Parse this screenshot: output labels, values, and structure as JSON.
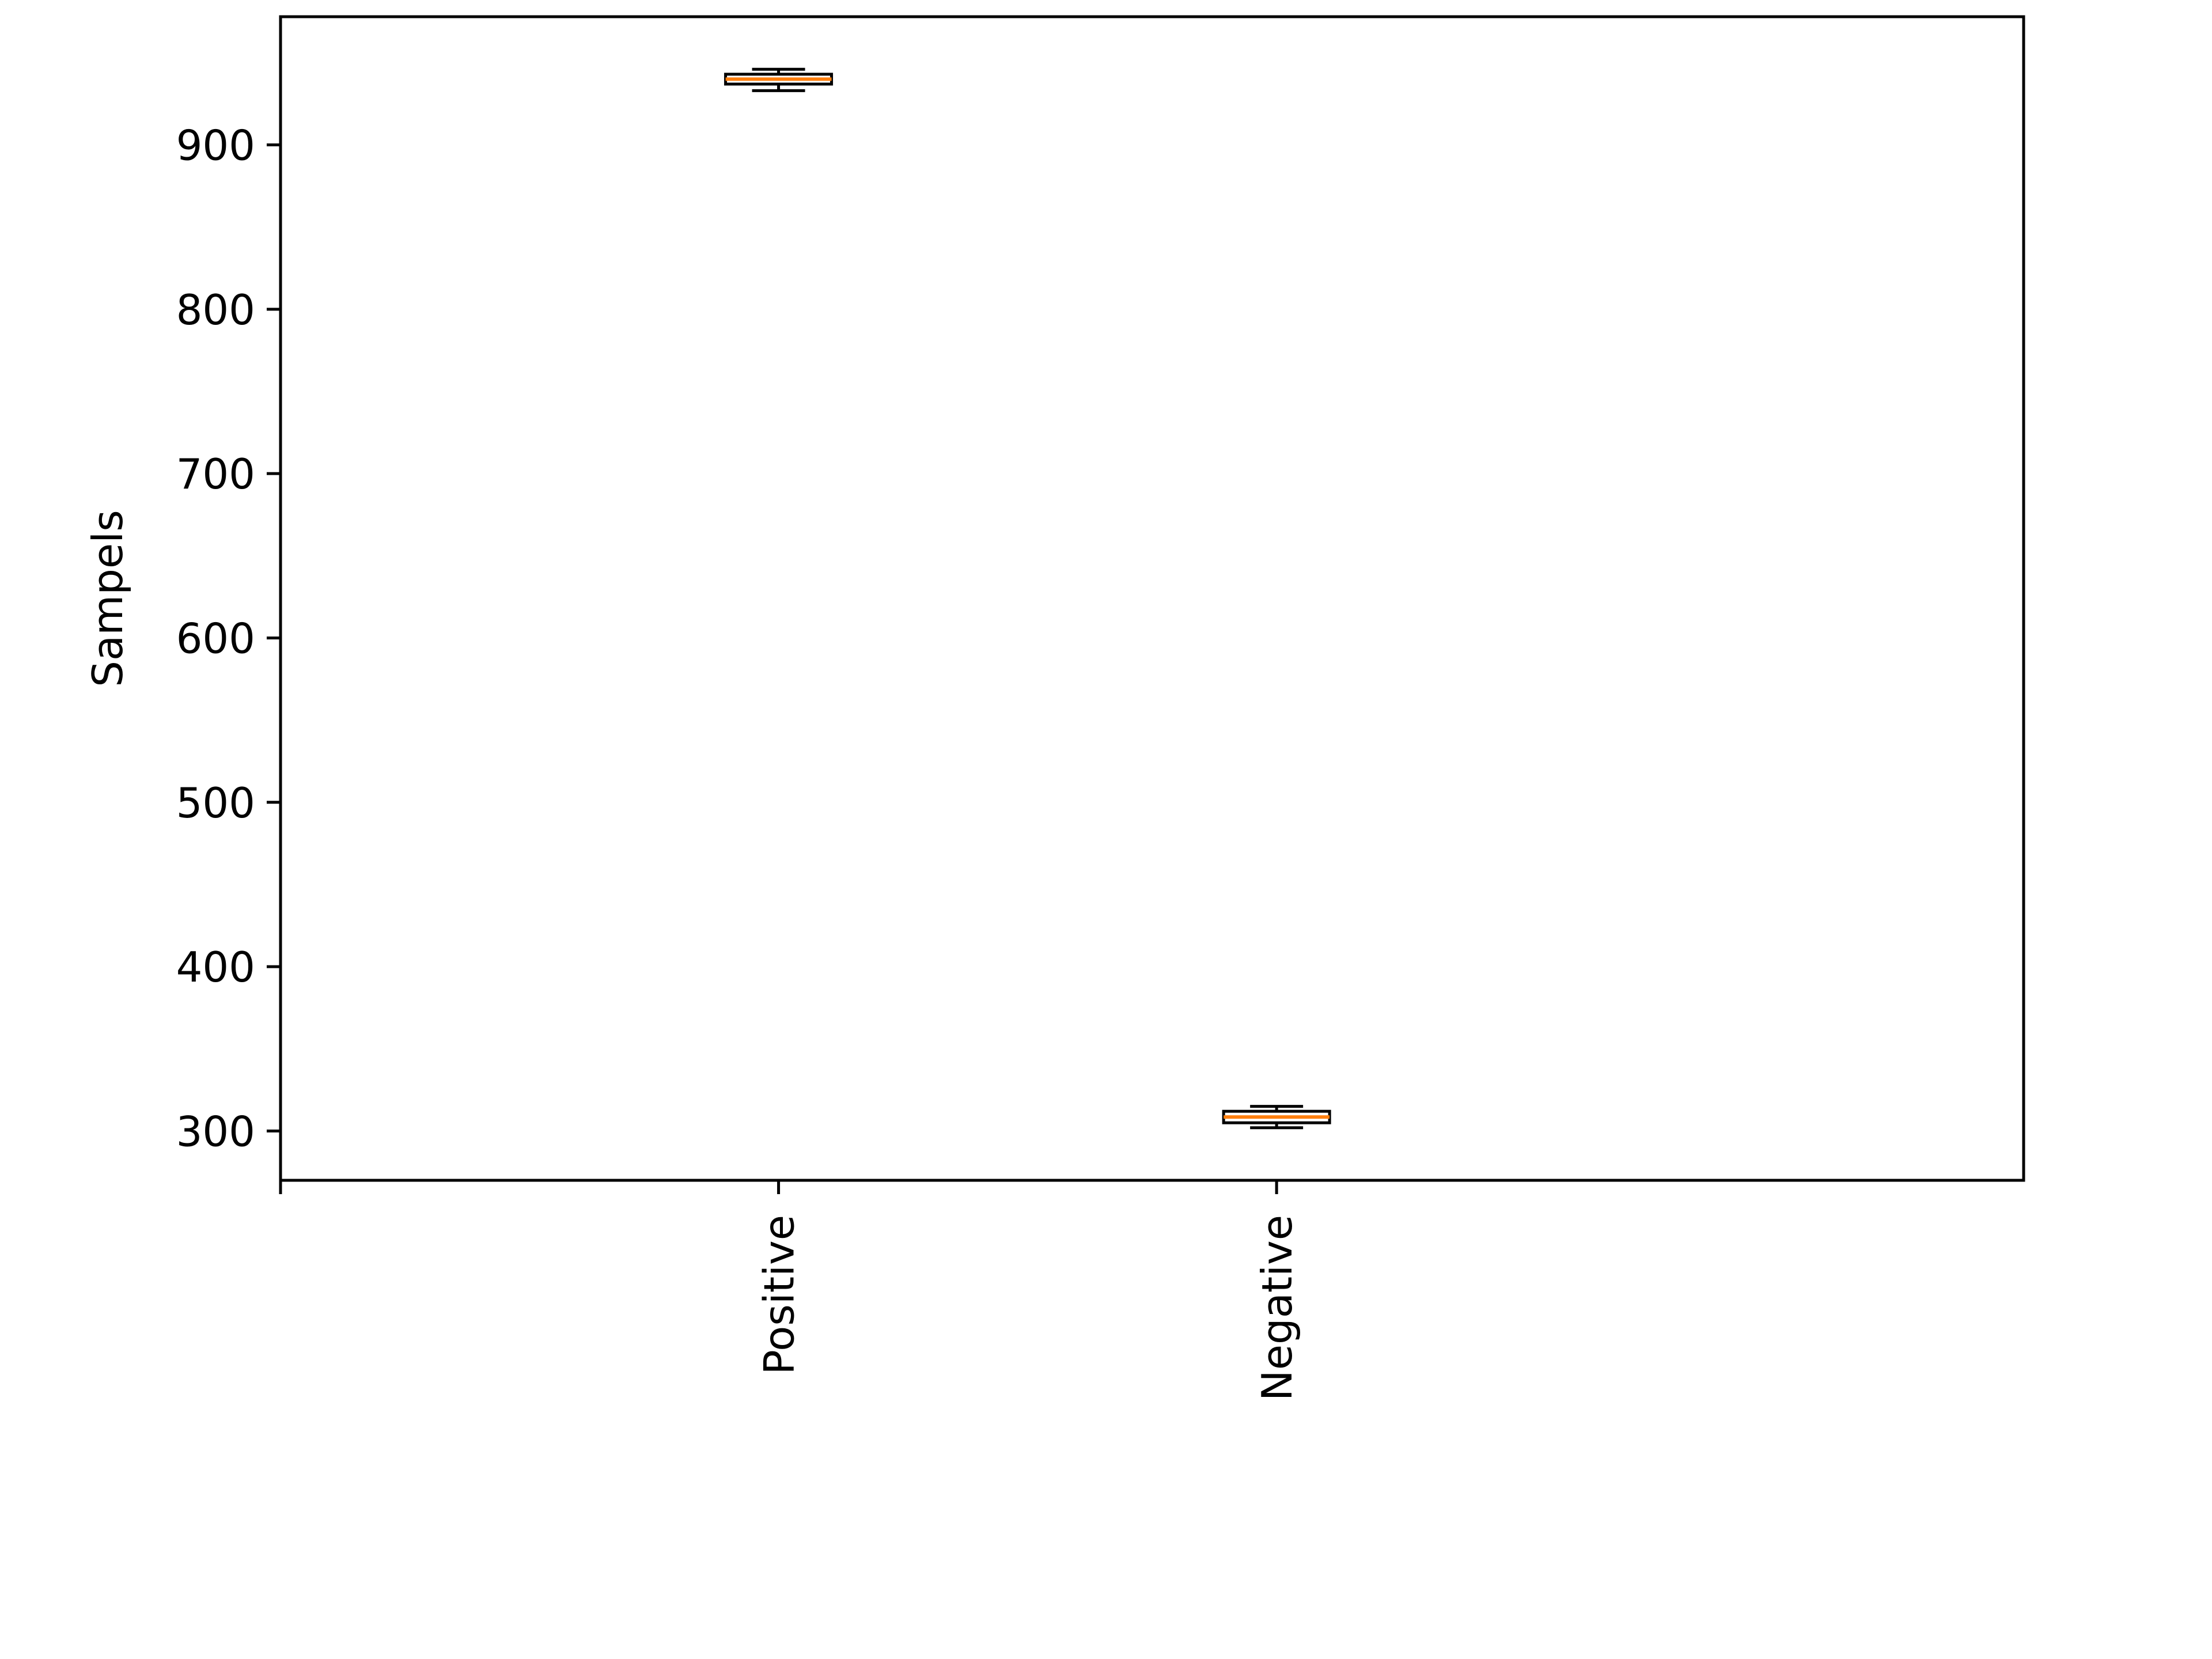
{
  "chart_data": {
    "type": "box",
    "title": "",
    "xlabel": "",
    "ylabel": "Sampels",
    "categories": [
      "Positive",
      "Negative"
    ],
    "boxes": [
      {
        "category": "Positive",
        "whisker_low": 933,
        "q1": 937,
        "median": 940,
        "q3": 943,
        "whisker_high": 946
      },
      {
        "category": "Negative",
        "whisker_low": 302,
        "q1": 305,
        "median": 308.5,
        "q3": 312,
        "whisker_high": 315
      }
    ],
    "yticks": [
      300,
      400,
      500,
      600,
      700,
      800,
      900
    ],
    "ytick_labels": [
      "300",
      "400",
      "500",
      "600",
      "700",
      "800",
      "900"
    ],
    "ylim": [
      270,
      978
    ],
    "xtick_label_rotation": "vertical",
    "grid": false,
    "colors": {
      "box": "#000000",
      "median": "#ff7f0e",
      "whisker": "#000000"
    }
  }
}
